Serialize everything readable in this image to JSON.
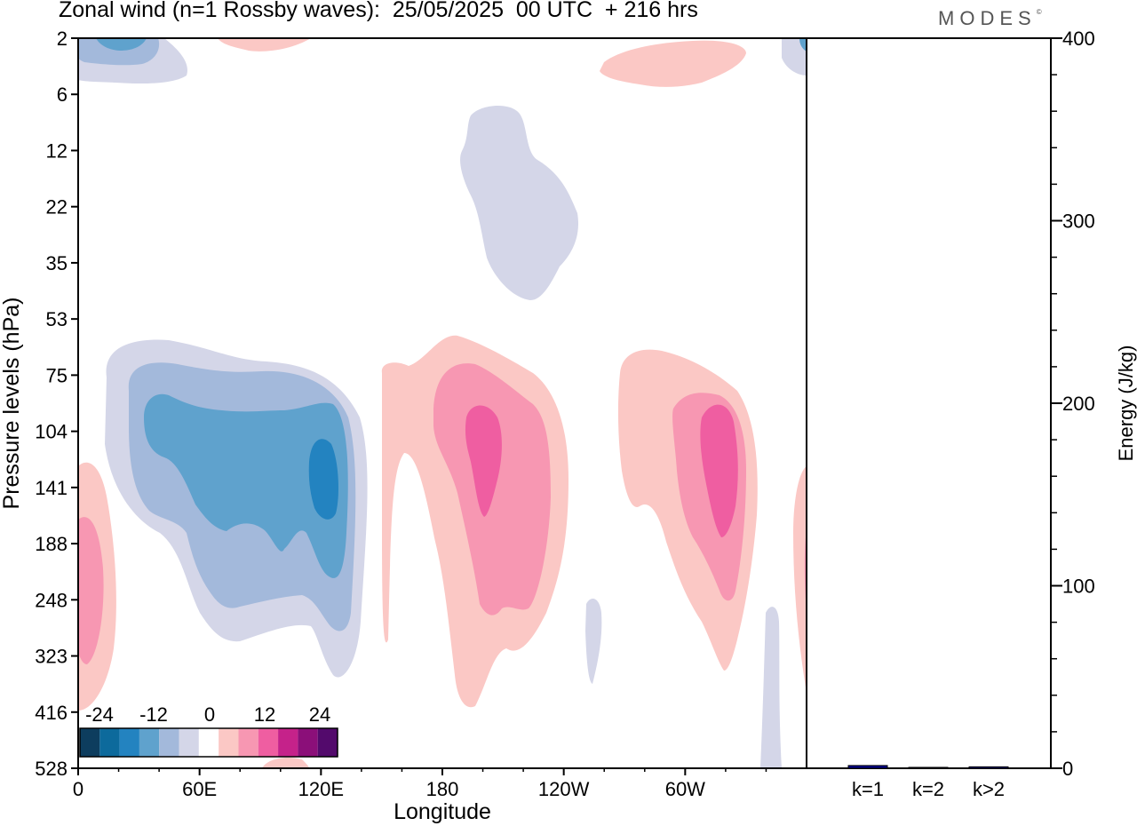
{
  "header": {
    "title": "Zonal wind (n=1 Rossby waves):  25/05/2025  00 UTC  + 216 hrs",
    "brand": "MODES",
    "brand_mark": "©"
  },
  "chart_data": [
    {
      "type": "heatmap",
      "title": "Zonal wind (n=1 Rossby waves):  25/05/2025  00 UTC  + 216 hrs",
      "xlabel": "Longitude",
      "ylabel": "Pressure levels (hPa)",
      "x_ticks": [
        "0",
        "60E",
        "120E",
        "180",
        "120W",
        "60W"
      ],
      "x_tick_values": [
        0,
        60,
        120,
        180,
        240,
        300
      ],
      "xlim": [
        0,
        360
      ],
      "y_ticks": [
        "2",
        "6",
        "12",
        "22",
        "35",
        "53",
        "75",
        "104",
        "141",
        "188",
        "248",
        "323",
        "416",
        "528"
      ],
      "y_order": "top-to-bottom",
      "colorbar": {
        "labels": [
          "-24",
          "-12",
          "0",
          "12",
          "24"
        ],
        "label_values": [
          -24,
          -12,
          0,
          12,
          24
        ],
        "colors": [
          "#0d3d5e",
          "#0d6a9c",
          "#2383c0",
          "#5fa2cd",
          "#a3b9db",
          "#d4d6e8",
          "#ffffff",
          "#fbc8c5",
          "#f797b2",
          "#ef5ea1",
          "#c5228a",
          "#8b0f79",
          "#530a6c"
        ]
      },
      "features": [
        {
          "sign": "negative",
          "center_longitude": 60,
          "pressure_range": [
            75,
            323
          ],
          "peak": -18
        },
        {
          "sign": "positive",
          "center_longitude": 195,
          "pressure_range": [
            75,
            416
          ],
          "peak": 12
        },
        {
          "sign": "positive",
          "center_longitude": 320,
          "pressure_range": [
            75,
            323
          ],
          "peak": 12
        },
        {
          "sign": "positive",
          "center_longitude": 5,
          "pressure_range": [
            141,
            416
          ],
          "peak": 6
        },
        {
          "sign": "negative",
          "center_longitude": 210,
          "pressure_range": [
            6,
            35
          ],
          "peak": -3
        },
        {
          "sign": "negative",
          "center_longitude": 20,
          "pressure_range": [
            2,
            6
          ],
          "peak": -12
        },
        {
          "sign": "positive",
          "center_longitude": 305,
          "pressure_range": [
            2,
            6
          ],
          "peak": 3
        }
      ]
    },
    {
      "type": "bar",
      "categories": [
        "k=1",
        "k=2",
        "k>2"
      ],
      "values": [
        1.5,
        0.5,
        0.8
      ],
      "ylabel": "Energy (J/kg)",
      "ylim": [
        0,
        400
      ],
      "y_ticks": [
        "0",
        "100",
        "200",
        "300",
        "400"
      ],
      "y_tick_values": [
        0,
        100,
        200,
        300,
        400
      ],
      "bar_color": "#00008b"
    }
  ]
}
